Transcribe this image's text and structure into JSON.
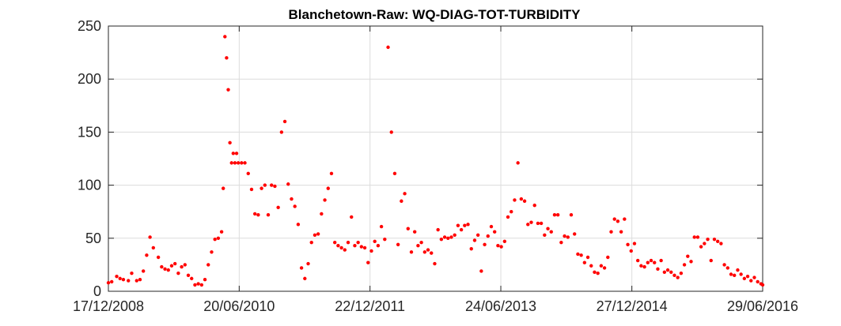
{
  "chart_data": {
    "type": "scatter",
    "title": "Blanchetown-Raw: WQ-DIAG-TOT-TURBIDITY",
    "xlabel": "",
    "ylabel": "",
    "xlim": [
      "2008-12-17",
      "2016-06-29"
    ],
    "ylim": [
      0,
      250
    ],
    "x_ticks": [
      "2008-12-17",
      "2010-06-20",
      "2011-12-22",
      "2013-06-24",
      "2014-12-27",
      "2016-06-29"
    ],
    "x_tick_labels": [
      "17/12/2008",
      "20/06/2010",
      "22/12/2011",
      "24/06/2013",
      "27/12/2014",
      "29/06/2016"
    ],
    "y_ticks": [
      0,
      50,
      100,
      150,
      200,
      250
    ],
    "y_tick_labels": [
      "0",
      "50",
      "100",
      "150",
      "200",
      "250"
    ],
    "grid": true,
    "marker_color": "#ff0000",
    "series": [
      {
        "points": [
          [
            "2008-12-17",
            8
          ],
          [
            "2008-12-31",
            9
          ],
          [
            "2009-01-21",
            14
          ],
          [
            "2009-02-04",
            12
          ],
          [
            "2009-02-18",
            11
          ],
          [
            "2009-03-11",
            10
          ],
          [
            "2009-03-25",
            17
          ],
          [
            "2009-04-15",
            10
          ],
          [
            "2009-04-29",
            11
          ],
          [
            "2009-05-13",
            19
          ],
          [
            "2009-05-27",
            34
          ],
          [
            "2009-06-10",
            51
          ],
          [
            "2009-06-24",
            41
          ],
          [
            "2009-07-15",
            32
          ],
          [
            "2009-07-29",
            23
          ],
          [
            "2009-08-12",
            21
          ],
          [
            "2009-08-26",
            20
          ],
          [
            "2009-09-09",
            24
          ],
          [
            "2009-09-23",
            26
          ],
          [
            "2009-10-07",
            17
          ],
          [
            "2009-10-21",
            23
          ],
          [
            "2009-11-04",
            25
          ],
          [
            "2009-11-18",
            15
          ],
          [
            "2009-12-02",
            12
          ],
          [
            "2009-12-16",
            6
          ],
          [
            "2009-12-30",
            7
          ],
          [
            "2010-01-13",
            6
          ],
          [
            "2010-01-27",
            11
          ],
          [
            "2010-02-10",
            25
          ],
          [
            "2010-02-24",
            37
          ],
          [
            "2010-03-10",
            49
          ],
          [
            "2010-03-24",
            50
          ],
          [
            "2010-04-07",
            56
          ],
          [
            "2010-04-14",
            97
          ],
          [
            "2010-04-21",
            240
          ],
          [
            "2010-04-28",
            220
          ],
          [
            "2010-05-05",
            190
          ],
          [
            "2010-05-12",
            140
          ],
          [
            "2010-05-19",
            121
          ],
          [
            "2010-05-26",
            130
          ],
          [
            "2010-06-02",
            121
          ],
          [
            "2010-06-09",
            130
          ],
          [
            "2010-06-16",
            121
          ],
          [
            "2010-06-30",
            121
          ],
          [
            "2010-07-14",
            121
          ],
          [
            "2010-07-28",
            111
          ],
          [
            "2010-08-11",
            96
          ],
          [
            "2010-08-25",
            73
          ],
          [
            "2010-09-08",
            72
          ],
          [
            "2010-09-22",
            97
          ],
          [
            "2010-10-06",
            100
          ],
          [
            "2010-10-20",
            72
          ],
          [
            "2010-11-03",
            100
          ],
          [
            "2010-11-17",
            99
          ],
          [
            "2010-12-01",
            79
          ],
          [
            "2010-12-15",
            150
          ],
          [
            "2010-12-29",
            160
          ],
          [
            "2011-01-12",
            101
          ],
          [
            "2011-01-26",
            87
          ],
          [
            "2011-02-09",
            80
          ],
          [
            "2011-02-23",
            63
          ],
          [
            "2011-03-09",
            22
          ],
          [
            "2011-03-23",
            12
          ],
          [
            "2011-04-06",
            26
          ],
          [
            "2011-04-20",
            46
          ],
          [
            "2011-05-04",
            53
          ],
          [
            "2011-05-18",
            54
          ],
          [
            "2011-06-01",
            73
          ],
          [
            "2011-06-15",
            86
          ],
          [
            "2011-06-29",
            97
          ],
          [
            "2011-07-13",
            111
          ],
          [
            "2011-07-27",
            46
          ],
          [
            "2011-08-10",
            43
          ],
          [
            "2011-08-24",
            41
          ],
          [
            "2011-09-07",
            39
          ],
          [
            "2011-09-21",
            46
          ],
          [
            "2011-10-05",
            70
          ],
          [
            "2011-10-19",
            43
          ],
          [
            "2011-11-02",
            46
          ],
          [
            "2011-11-16",
            42
          ],
          [
            "2011-11-30",
            41
          ],
          [
            "2011-12-14",
            27
          ],
          [
            "2011-12-28",
            38
          ],
          [
            "2012-01-11",
            47
          ],
          [
            "2012-01-25",
            43
          ],
          [
            "2012-02-08",
            61
          ],
          [
            "2012-02-22",
            49
          ],
          [
            "2012-03-07",
            230
          ],
          [
            "2012-03-21",
            150
          ],
          [
            "2012-04-04",
            111
          ],
          [
            "2012-04-18",
            44
          ],
          [
            "2012-05-02",
            85
          ],
          [
            "2012-05-16",
            92
          ],
          [
            "2012-05-30",
            59
          ],
          [
            "2012-06-13",
            37
          ],
          [
            "2012-06-27",
            56
          ],
          [
            "2012-07-11",
            43
          ],
          [
            "2012-07-25",
            46
          ],
          [
            "2012-08-08",
            37
          ],
          [
            "2012-08-22",
            39
          ],
          [
            "2012-09-05",
            36
          ],
          [
            "2012-09-19",
            26
          ],
          [
            "2012-10-03",
            58
          ],
          [
            "2012-10-17",
            49
          ],
          [
            "2012-10-31",
            51
          ],
          [
            "2012-11-14",
            50
          ],
          [
            "2012-11-28",
            51
          ],
          [
            "2012-12-12",
            53
          ],
          [
            "2012-12-26",
            62
          ],
          [
            "2013-01-09",
            58
          ],
          [
            "2013-01-23",
            62
          ],
          [
            "2013-02-06",
            63
          ],
          [
            "2013-02-20",
            40
          ],
          [
            "2013-03-06",
            48
          ],
          [
            "2013-03-20",
            53
          ],
          [
            "2013-04-03",
            19
          ],
          [
            "2013-04-17",
            44
          ],
          [
            "2013-05-01",
            52
          ],
          [
            "2013-05-15",
            61
          ],
          [
            "2013-05-29",
            56
          ],
          [
            "2013-06-12",
            43
          ],
          [
            "2013-06-26",
            42
          ],
          [
            "2013-07-10",
            47
          ],
          [
            "2013-07-24",
            70
          ],
          [
            "2013-08-07",
            75
          ],
          [
            "2013-08-21",
            86
          ],
          [
            "2013-09-04",
            121
          ],
          [
            "2013-09-18",
            87
          ],
          [
            "2013-10-02",
            85
          ],
          [
            "2013-10-16",
            63
          ],
          [
            "2013-10-30",
            65
          ],
          [
            "2013-11-13",
            81
          ],
          [
            "2013-11-27",
            64
          ],
          [
            "2013-12-11",
            64
          ],
          [
            "2013-12-25",
            53
          ],
          [
            "2014-01-08",
            59
          ],
          [
            "2014-01-22",
            56
          ],
          [
            "2014-02-05",
            72
          ],
          [
            "2014-02-19",
            72
          ],
          [
            "2014-03-05",
            46
          ],
          [
            "2014-03-19",
            52
          ],
          [
            "2014-04-02",
            51
          ],
          [
            "2014-04-16",
            72
          ],
          [
            "2014-04-30",
            54
          ],
          [
            "2014-05-14",
            35
          ],
          [
            "2014-05-28",
            34
          ],
          [
            "2014-06-11",
            27
          ],
          [
            "2014-06-25",
            32
          ],
          [
            "2014-07-09",
            24
          ],
          [
            "2014-07-23",
            18
          ],
          [
            "2014-08-06",
            17
          ],
          [
            "2014-08-20",
            24
          ],
          [
            "2014-09-03",
            22
          ],
          [
            "2014-09-17",
            32
          ],
          [
            "2014-10-01",
            56
          ],
          [
            "2014-10-15",
            68
          ],
          [
            "2014-10-29",
            66
          ],
          [
            "2014-11-12",
            56
          ],
          [
            "2014-11-26",
            68
          ],
          [
            "2014-12-10",
            44
          ],
          [
            "2014-12-24",
            38
          ],
          [
            "2015-01-07",
            45
          ],
          [
            "2015-01-21",
            29
          ],
          [
            "2015-02-04",
            24
          ],
          [
            "2015-02-18",
            23
          ],
          [
            "2015-03-04",
            27
          ],
          [
            "2015-03-18",
            29
          ],
          [
            "2015-04-01",
            27
          ],
          [
            "2015-04-15",
            21
          ],
          [
            "2015-04-29",
            29
          ],
          [
            "2015-05-13",
            18
          ],
          [
            "2015-05-27",
            20
          ],
          [
            "2015-06-10",
            18
          ],
          [
            "2015-06-24",
            15
          ],
          [
            "2015-07-08",
            13
          ],
          [
            "2015-07-22",
            17
          ],
          [
            "2015-08-05",
            25
          ],
          [
            "2015-08-19",
            33
          ],
          [
            "2015-09-02",
            28
          ],
          [
            "2015-09-16",
            51
          ],
          [
            "2015-09-30",
            51
          ],
          [
            "2015-10-14",
            42
          ],
          [
            "2015-10-28",
            45
          ],
          [
            "2015-11-11",
            49
          ],
          [
            "2015-11-25",
            29
          ],
          [
            "2015-12-09",
            49
          ],
          [
            "2015-12-23",
            47
          ],
          [
            "2016-01-06",
            45
          ],
          [
            "2016-01-20",
            25
          ],
          [
            "2016-02-03",
            22
          ],
          [
            "2016-02-17",
            16
          ],
          [
            "2016-03-02",
            15
          ],
          [
            "2016-03-16",
            20
          ],
          [
            "2016-03-30",
            16
          ],
          [
            "2016-04-13",
            12
          ],
          [
            "2016-04-27",
            14
          ],
          [
            "2016-05-11",
            10
          ],
          [
            "2016-05-25",
            13
          ],
          [
            "2016-06-08",
            9
          ],
          [
            "2016-06-22",
            7
          ],
          [
            "2016-06-29",
            6
          ]
        ]
      }
    ]
  }
}
